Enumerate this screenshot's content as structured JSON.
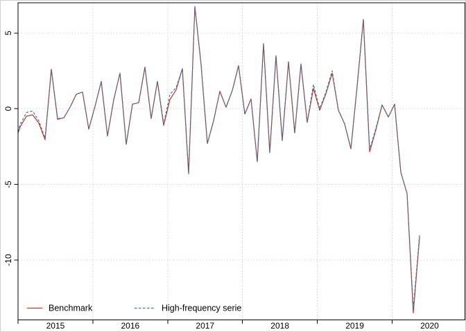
{
  "figure": {
    "background": "#ffffff",
    "frame_border_color": "#cfcfcf",
    "axis_color": "#000000",
    "grid_color": "#d3d3d3"
  },
  "chart_data": {
    "type": "line",
    "title": "",
    "xlabel": "",
    "ylabel": "",
    "x_start": "2014-12",
    "frequency": "monthly",
    "x_tick_labels": [
      "2015",
      "2016",
      "2017",
      "2018",
      "2019",
      "2020"
    ],
    "y_tick_values": [
      5,
      0,
      -5,
      -10
    ],
    "y_tick_labels": [
      "5",
      "0",
      "-5",
      "-10"
    ],
    "ylim": [
      -14,
      7
    ],
    "grid": "dotted light-gray, vertical at year starts and horizontal at y ticks",
    "legend_position": "bottom-left, no box",
    "series": [
      {
        "name": "Benchmark",
        "color": "#bf3626",
        "style": "solid",
        "values": [
          -2.45,
          -1.2,
          -0.5,
          -0.4,
          -0.95,
          -2.05,
          2.6,
          -0.7,
          -0.6,
          0.1,
          0.95,
          1.1,
          -1.35,
          0.15,
          1.8,
          -1.8,
          0.6,
          2.35,
          -2.35,
          0.3,
          0.4,
          2.75,
          -0.65,
          1.8,
          -1.1,
          0.6,
          1.25,
          2.65,
          -4.3,
          6.75,
          2.9,
          -2.3,
          -0.8,
          1.15,
          0.1,
          1.2,
          2.85,
          -0.35,
          0.65,
          -3.5,
          4.3,
          -2.9,
          3.5,
          -2.1,
          3.1,
          -1.6,
          2.95,
          -0.9,
          1.35,
          -0.1,
          1.0,
          2.35,
          -0.1,
          -1.0,
          -2.65,
          1.5,
          5.9,
          -2.85,
          -1.4,
          0.25,
          -0.55,
          0.3,
          -4.2,
          -5.6,
          -13.5,
          -8.5
        ]
      },
      {
        "name": "High-frequency serie",
        "color": "#3d74a6",
        "style": "dashed",
        "values": [
          -2.3,
          -1.05,
          -0.25,
          -0.15,
          -0.8,
          -1.95,
          2.65,
          -0.65,
          -0.6,
          0.1,
          0.95,
          1.1,
          -1.35,
          0.15,
          1.8,
          -1.8,
          0.6,
          2.35,
          -2.35,
          0.3,
          0.4,
          2.75,
          -0.65,
          1.85,
          -1.0,
          0.95,
          1.4,
          2.65,
          -4.25,
          6.75,
          2.9,
          -2.3,
          -0.8,
          1.15,
          0.1,
          1.2,
          2.85,
          -0.35,
          0.65,
          -3.5,
          4.3,
          -2.9,
          3.5,
          -2.1,
          3.1,
          -1.6,
          2.95,
          -0.9,
          1.6,
          0.0,
          1.1,
          2.5,
          -0.1,
          -1.0,
          -2.65,
          1.5,
          5.9,
          -2.7,
          -1.3,
          0.25,
          -0.55,
          0.3,
          -4.2,
          -5.6,
          -13.2,
          -8.35
        ]
      }
    ]
  }
}
